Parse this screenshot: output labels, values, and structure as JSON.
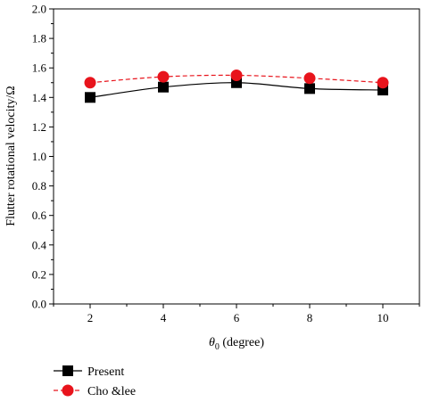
{
  "chart_data": {
    "type": "line",
    "xlabel": "θ0 (degree)",
    "xlabel_symbol": "θ",
    "xlabel_sub": "0",
    "xlabel_rest": " (degree)",
    "ylabel": "Flutter rotational velocity/Ω",
    "xlim": [
      1,
      11
    ],
    "ylim": [
      0.0,
      2.0
    ],
    "xticks": [
      2,
      4,
      6,
      8,
      10
    ],
    "yticks": [
      "0.0",
      "0.2",
      "0.4",
      "0.6",
      "0.8",
      "1.0",
      "1.2",
      "1.4",
      "1.6",
      "1.8",
      "2.0"
    ],
    "grid": false,
    "legend_position": "bottom-left",
    "x": [
      2,
      4,
      6,
      8,
      10
    ],
    "series": [
      {
        "name": "Present",
        "values": [
          1.4,
          1.47,
          1.5,
          1.46,
          1.45
        ],
        "color": "#000000",
        "marker": "square",
        "line": "solid"
      },
      {
        "name": "Cho &lee",
        "values": [
          1.5,
          1.54,
          1.55,
          1.53,
          1.5
        ],
        "color": "#e8141c",
        "marker": "circle",
        "line": "dashed"
      }
    ]
  }
}
